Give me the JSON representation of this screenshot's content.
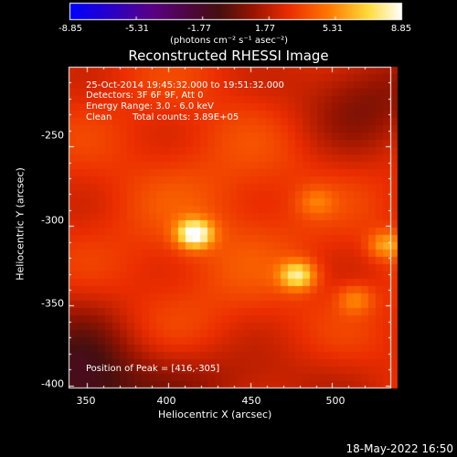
{
  "colorbar": {
    "ticks": [
      "-8.85",
      "-5.31",
      "-1.77",
      "1.77",
      "5.31",
      "8.85"
    ],
    "tick_values": [
      -8.85,
      -5.31,
      -1.77,
      1.77,
      5.31,
      8.85
    ],
    "range": [
      -8.85,
      8.85
    ],
    "unit_text": "(photons cm⁻² s⁻¹ asec⁻²)"
  },
  "title": "Reconstructed RHESSI Image",
  "info": {
    "line1": "25-Oct-2014 19:45:32.000 to 19:51:32.000",
    "line2": "Detectors: 3F 6F 9F, Att 0",
    "line3": "Energy Range: 3.0 - 6.0 keV",
    "line4_a": "Clean",
    "line4_b": "Total counts: 3.89E+05"
  },
  "peak_text": "Position of Peak = [416,-305]",
  "date_stamp": "18-May-2022 16:50",
  "chart_data": {
    "type": "heatmap",
    "title": "Reconstructed RHESSI Image",
    "xlabel": "Heliocentric X (arcsec)",
    "ylabel": "Heliocentric Y (arcsec)",
    "xlim": [
      339,
      536
    ],
    "ylim": [
      -402,
      -200
    ],
    "x_ticks": [
      350,
      400,
      450,
      500
    ],
    "y_ticks": [
      -250,
      -300,
      -350,
      -400
    ],
    "colorscale": "red-temperature",
    "value_range": [
      -8.85,
      8.85
    ],
    "sources": [
      {
        "x": 416,
        "y": -305,
        "peak": 8.85
      },
      {
        "x": 479,
        "y": -331,
        "peak": 7.6
      },
      {
        "x": 533,
        "y": -312,
        "peak": 6.0
      },
      {
        "x": 514,
        "y": -346,
        "peak": 5.2
      },
      {
        "x": 490,
        "y": -285,
        "peak": 4.5
      }
    ]
  }
}
